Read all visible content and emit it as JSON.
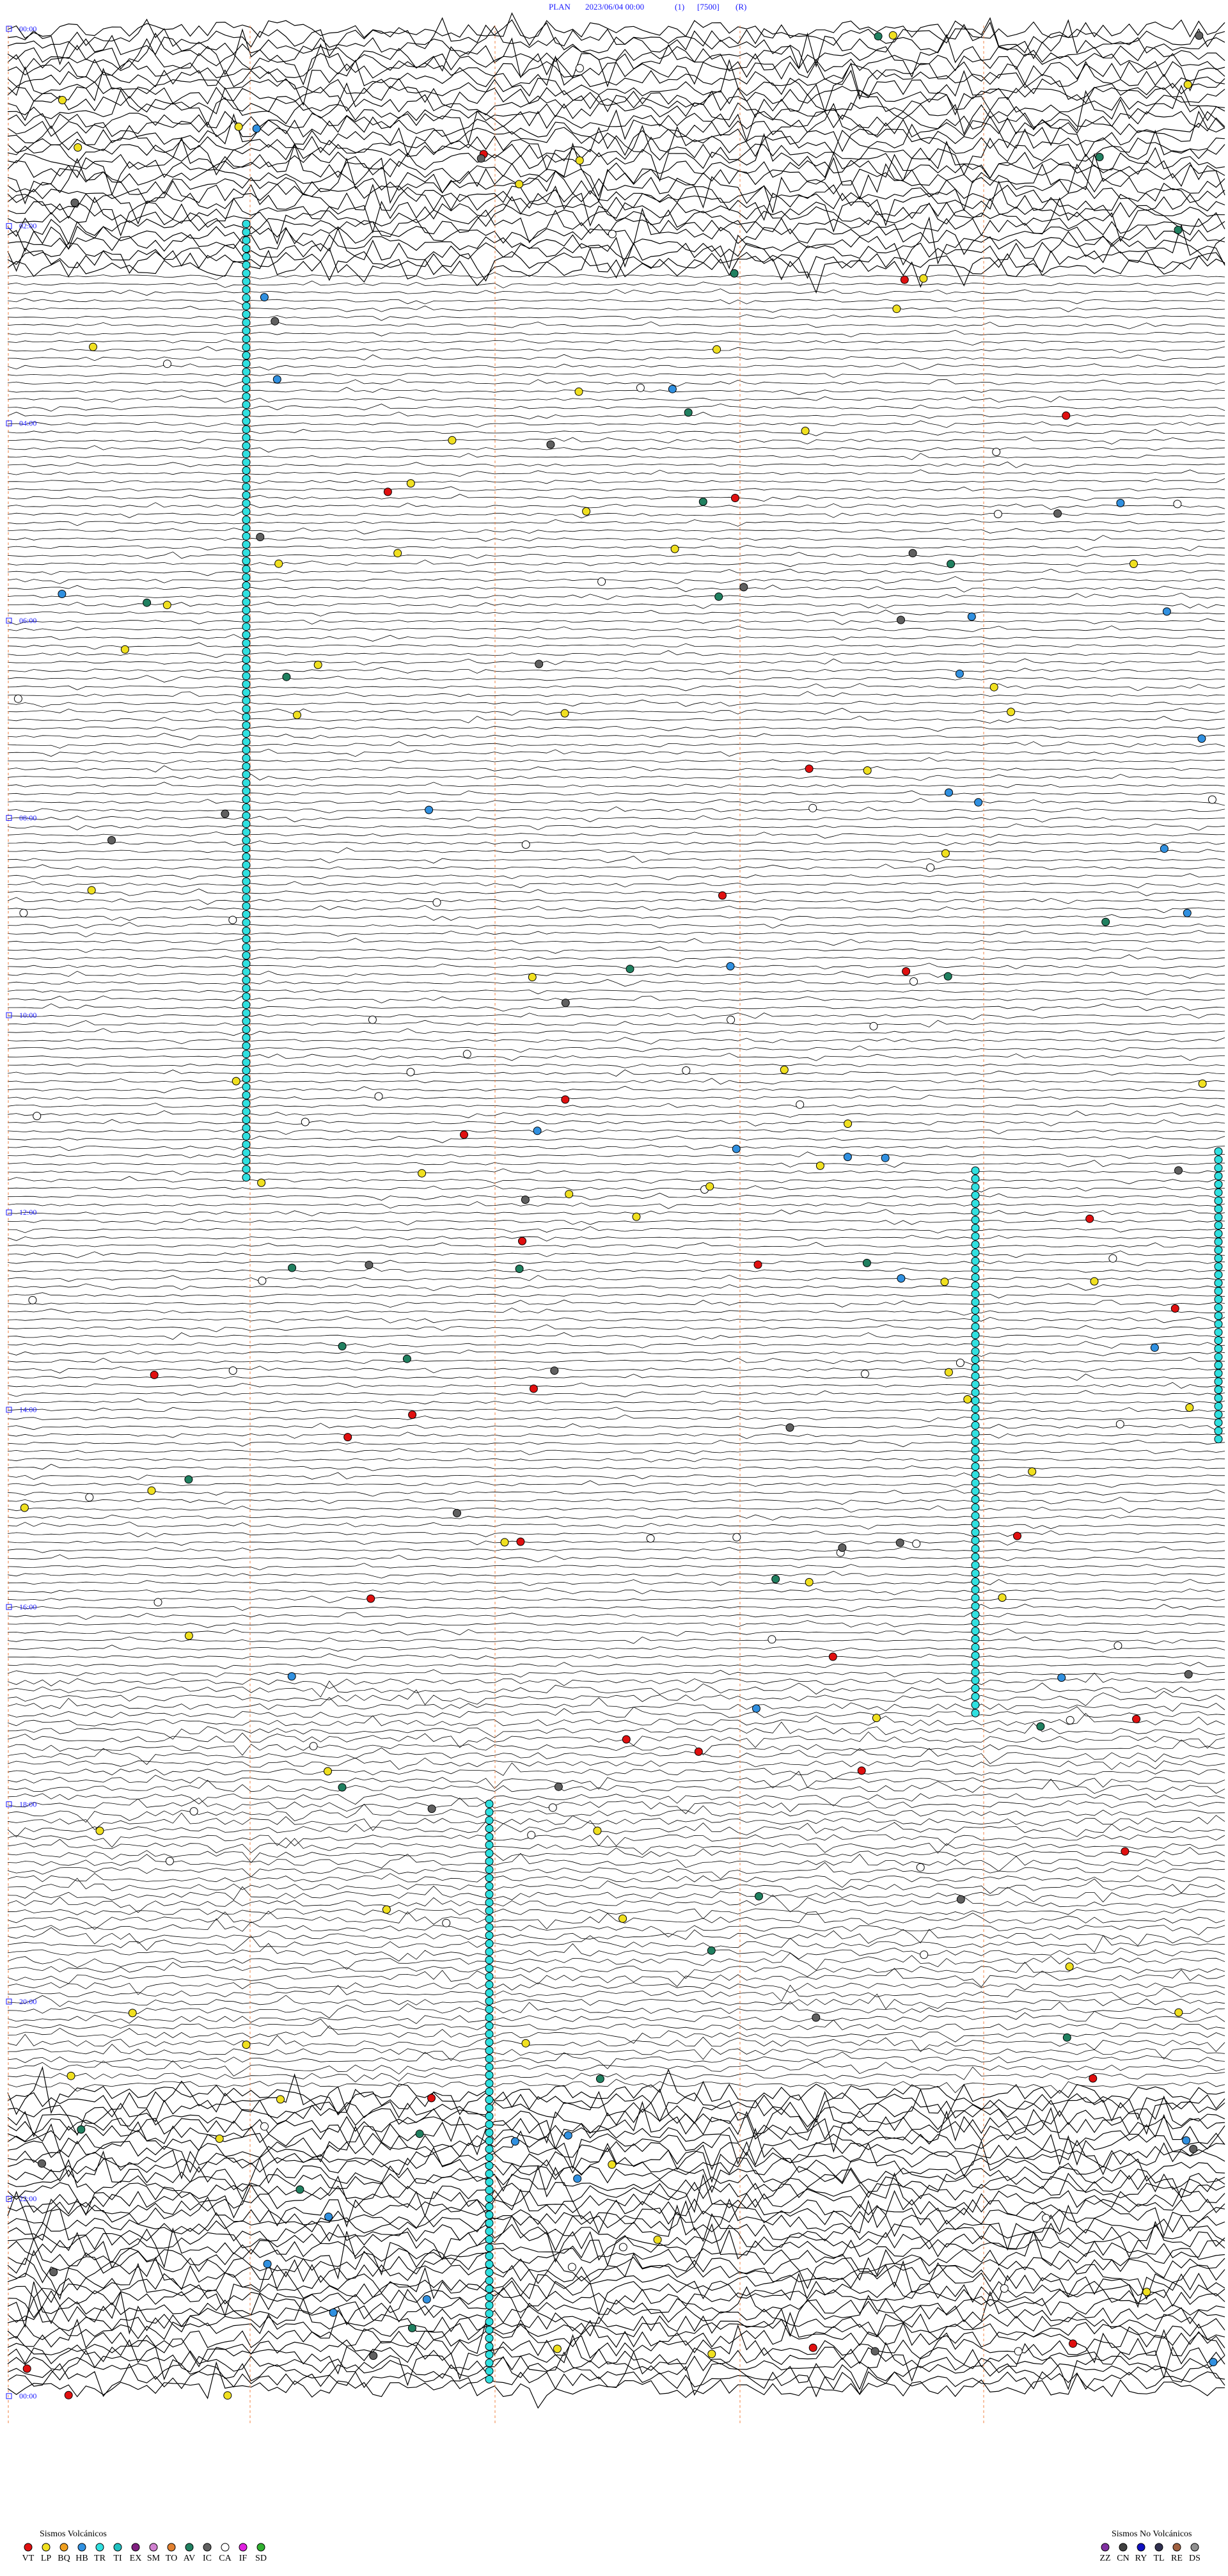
{
  "header": {
    "station": "PLAN",
    "datetime": "2023/06/04 00:00",
    "channel": "(1)",
    "scale": "[7500]",
    "mode": "(R)"
  },
  "time_labels": [
    "00:00",
    "02:00",
    "04:00",
    "06:00",
    "08:00",
    "10:00",
    "12:00",
    "14:00",
    "16:00",
    "18:00",
    "20:00",
    "22:00",
    "00:00"
  ],
  "legend": {
    "volcanic": {
      "title": "Sismos Volcánicos",
      "items": [
        {
          "name": "VT",
          "color": "#e01010"
        },
        {
          "name": "LP",
          "color": "#f0e020"
        },
        {
          "name": "BQ",
          "color": "#f0a020"
        },
        {
          "name": "HB",
          "color": "#3090e0"
        },
        {
          "name": "TR",
          "color": "#30e0e0"
        },
        {
          "name": "TI",
          "color": "#20c0c0"
        },
        {
          "name": "EX",
          "color": "#802080"
        },
        {
          "name": "SM",
          "color": "#d080d0"
        },
        {
          "name": "TO",
          "color": "#e08030"
        },
        {
          "name": "AV",
          "color": "#208060"
        },
        {
          "name": "IC",
          "color": "#606060"
        },
        {
          "name": "CA",
          "color": "#ffffff"
        },
        {
          "name": "IF",
          "color": "#e020e0"
        },
        {
          "name": "SD",
          "color": "#30b030"
        }
      ]
    },
    "non_volcanic": {
      "title": "Sismos No Volcánicos",
      "items": [
        {
          "name": "ZZ",
          "color": "#8030a0"
        },
        {
          "name": "CN",
          "color": "#404040"
        },
        {
          "name": "RY",
          "color": "#1010c0"
        },
        {
          "name": "TL",
          "color": "#303050"
        },
        {
          "name": "RE",
          "color": "#a06040"
        },
        {
          "name": "DS",
          "color": "#909090"
        }
      ]
    }
  }
}
